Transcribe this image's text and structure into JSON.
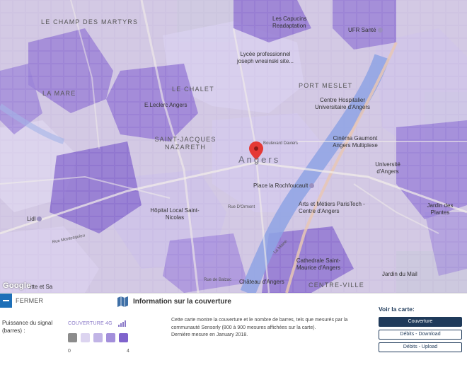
{
  "map": {
    "districts": [
      "LE CHAMP DES MARTYRS",
      "LA MARE",
      "LE CHALET",
      "SAINT-JACQUES NAZARETH",
      "PORT MESLET",
      "CENTRE-VILLE"
    ],
    "city": "Angers",
    "pois": {
      "capucins": "Les Capucins Readaptation",
      "ufr": "UFR Santé",
      "lycee": "Lycée professionnel joseph wresinski site...",
      "chu": "Centre Hospitalier Universitaire d'Angers",
      "leclerc": "E.Leclerc Angers",
      "gaumont": "Cinéma Gaumont Angers Multiplexe",
      "univ": "Université d'Angers",
      "rochefoucault": "Place la Rochfoucault",
      "artsmetiers": "Arts et Métiers ParisTech - Centre d'Angers",
      "hopital": "Hôpital Local Saint-Nicolas",
      "lidl": "Lidl",
      "jardinplantes": "Jardin des Plantes",
      "cathedrale": "Cathedrale Saint-Maurice d'Angers",
      "jardinmail": "Jardin du Mail",
      "chateau": "Château d'Angers",
      "ette": "ette et Sa"
    },
    "streets": {
      "daviers": "Boulevard Daviers",
      "balzac": "Rue de Balzac",
      "maine": "La Maine",
      "montesquieu": "Rue Montesquieu",
      "dmont": "Rue D'Ormont"
    },
    "google": "Google"
  },
  "panel": {
    "close_label": "FERMER",
    "info_title": "Information sur la couverture",
    "legend_label": "Puissance du signal (barres) :",
    "legend_title": "COUVERTURE 4G",
    "legend_min": "0",
    "legend_max": "4",
    "legend_colors": [
      "#8c8c8c",
      "#dcd4f0",
      "#c1b4e6",
      "#a38fdb",
      "#7f63cc"
    ],
    "desc_line1": "Cette carte montre la couverture et le nombre de barres, tels que mesurés par la communauté Sensorly (800 à 900 mesures affichées sur la carte).",
    "desc_line2": "Dernière mesure en January 2018.",
    "view_title": "Voir la carte:",
    "btn_coverage": "Couverture",
    "btn_download": "Débits - Download",
    "btn_upload": "Débits - Upload"
  }
}
